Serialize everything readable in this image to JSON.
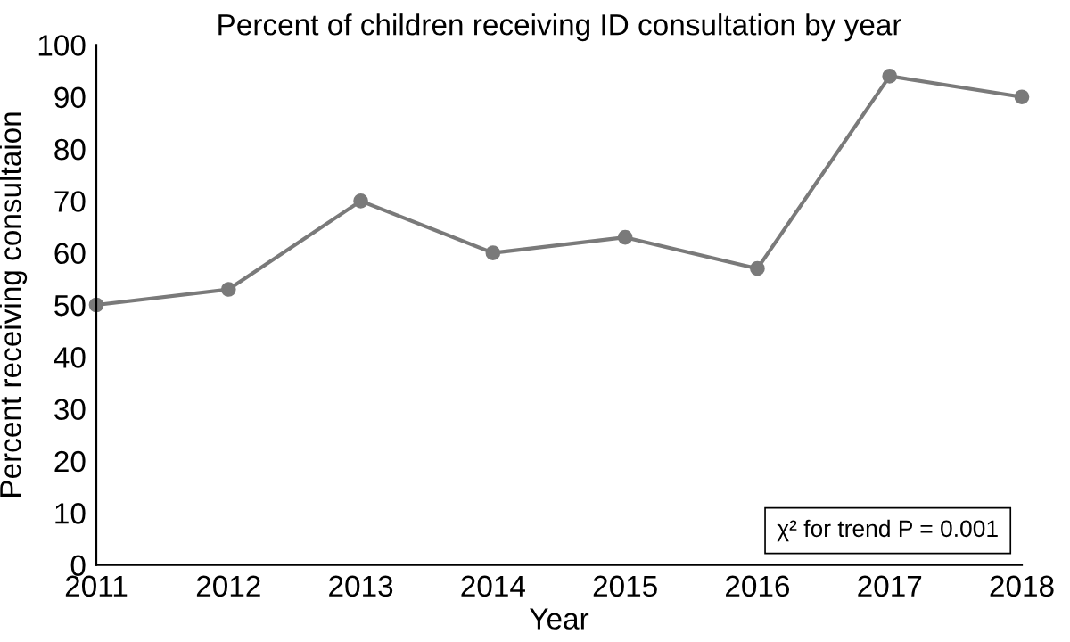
{
  "chart_data": {
    "type": "line",
    "title": "Percent of children receiving ID consultation by year",
    "xlabel": "Year",
    "ylabel": "Percent receiving consultaion",
    "x": [
      2011,
      2012,
      2013,
      2014,
      2015,
      2016,
      2017,
      2018
    ],
    "series": [
      {
        "color": "#7a7a7a",
        "values": [
          50,
          53,
          70,
          60,
          63,
          57,
          94,
          90
        ]
      }
    ],
    "xlim": [
      2011,
      2018
    ],
    "xticks": [
      2011,
      2012,
      2013,
      2014,
      2015,
      2016,
      2017,
      2018
    ],
    "ylim": [
      0,
      100
    ],
    "yticks": [
      0,
      10,
      20,
      30,
      40,
      50,
      60,
      70,
      80,
      90,
      100
    ],
    "grid": false,
    "legend": false,
    "marker": "circle",
    "line_style": "solid",
    "annotations": [
      "χ² for trend P = 0.001"
    ]
  }
}
